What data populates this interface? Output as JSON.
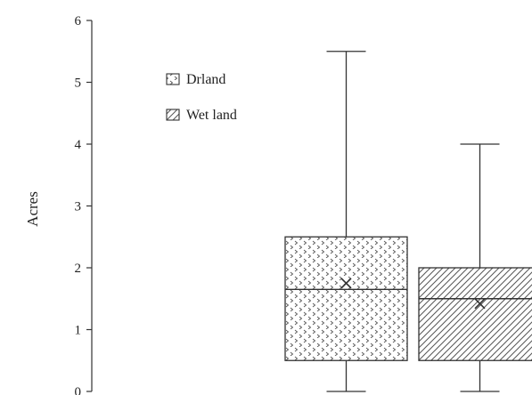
{
  "chart_data": {
    "type": "box",
    "ylabel": "Acres",
    "ylim": [
      0,
      6
    ],
    "yticks": [
      0,
      1,
      2,
      3,
      4,
      5,
      6
    ],
    "legend_placement": "top-left",
    "grid": false,
    "series": [
      {
        "name": "Drland",
        "pattern": "dots",
        "min": 0,
        "q1": 0.5,
        "median": 1.65,
        "mean": 1.75,
        "q3": 2.5,
        "max": 5.5
      },
      {
        "name": "Wet land",
        "pattern": "diagonal-hatch",
        "min": 0,
        "q1": 0.5,
        "median": 1.5,
        "mean": 1.42,
        "q3": 2.0,
        "max": 4.0
      }
    ],
    "colors": {
      "stroke": "#333333",
      "text": "#222222",
      "fill": "#ffffff"
    }
  }
}
